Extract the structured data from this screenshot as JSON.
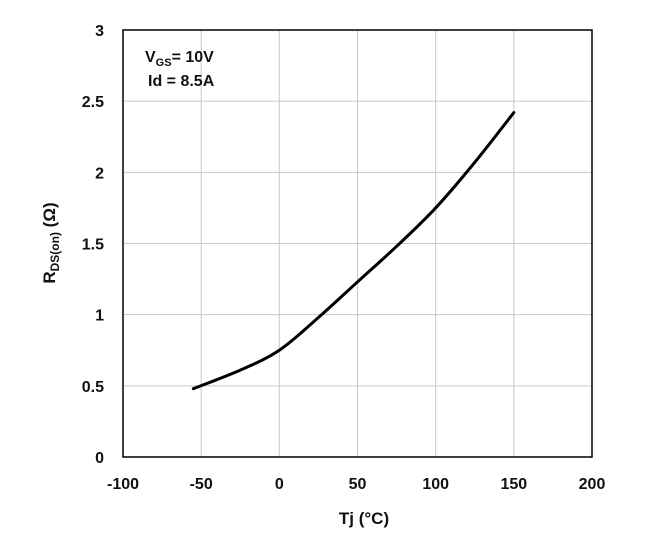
{
  "chart_data": {
    "type": "line",
    "title": "",
    "xlabel": "Tj (°C)",
    "ylabel": {
      "main": "R",
      "sub": "DS(on)",
      "suffix": " (Ω)"
    },
    "xlim": [
      -100,
      200
    ],
    "ylim": [
      0,
      3
    ],
    "xticks": [
      -100,
      -50,
      0,
      50,
      100,
      150,
      200
    ],
    "yticks": [
      0,
      0.5,
      1,
      1.5,
      2,
      2.5,
      3
    ],
    "ytick_labels": [
      "0",
      "0.5",
      "1",
      "1.5",
      "2",
      "2.5",
      "3"
    ],
    "grid": true,
    "annotations": {
      "vgs": {
        "main": "V",
        "sub": "GS",
        "rest": "= 10V"
      },
      "id": "Id = 8.5A"
    },
    "series": [
      {
        "color": "#000000",
        "x": [
          -55,
          -25,
          0,
          25,
          50,
          75,
          100,
          125,
          150
        ],
        "y": [
          0.48,
          0.61,
          0.75,
          0.98,
          1.23,
          1.48,
          1.75,
          2.07,
          2.42
        ]
      }
    ]
  }
}
